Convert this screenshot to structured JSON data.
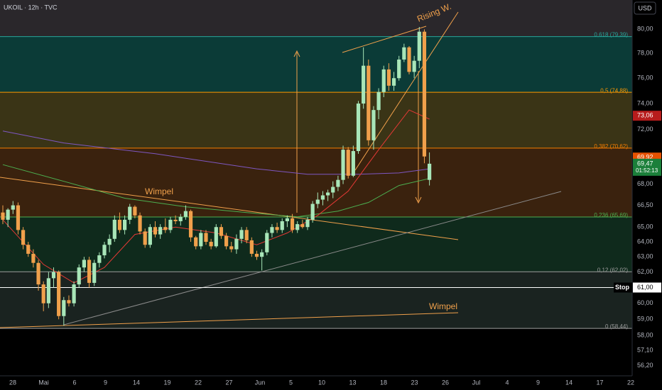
{
  "chart_data": {
    "type": "candlestick",
    "title": "UKOIL · 12h · TVC",
    "currency": "USD",
    "log_scale": true,
    "ylim": [
      55.6,
      82.5
    ],
    "yticks": [
      {
        "value": 80,
        "label": "80,00"
      },
      {
        "value": 78,
        "label": "78,00"
      },
      {
        "value": 76,
        "label": "76,00"
      },
      {
        "value": 74,
        "label": "74,00"
      },
      {
        "value": 72,
        "label": "72,00"
      },
      {
        "value": 68,
        "label": "68,00"
      },
      {
        "value": 66.5,
        "label": "66,50"
      },
      {
        "value": 65,
        "label": "65,00"
      },
      {
        "value": 64,
        "label": "64,00"
      },
      {
        "value": 63,
        "label": "63,00"
      },
      {
        "value": 62,
        "label": "62,00"
      },
      {
        "value": 60,
        "label": "60,00"
      },
      {
        "value": 59,
        "label": "59,00"
      },
      {
        "value": 58,
        "label": "58,00"
      },
      {
        "value": 57.1,
        "label": "57,10"
      },
      {
        "value": 56.2,
        "label": "56,20"
      }
    ],
    "x_tick_labels": [
      "28",
      "Mai",
      "6",
      "9",
      "14",
      "19",
      "22",
      "27",
      "Jun",
      "5",
      "10",
      "13",
      "18",
      "23",
      "26",
      "Jul",
      "4",
      "9",
      "14",
      "17",
      "22"
    ],
    "up_color": "#a8e6b8",
    "down_color": "#f0a04b",
    "open": [
      66.0,
      65.5,
      66.2,
      66.5,
      64.8,
      63.8,
      63.2,
      62.6,
      61.2,
      60.0,
      61.6,
      62.0,
      59.2,
      60.2,
      60.0,
      61.2,
      62.3,
      62.8,
      61.3,
      62.6,
      63.1,
      63.8,
      64.2,
      65.5,
      64.8,
      65.5,
      66.4,
      65.8,
      64.7,
      63.8,
      65.0,
      64.5,
      65.0,
      64.8,
      65.5,
      65.4,
      65.7,
      66.1,
      64.3,
      63.7,
      64.6,
      64.0,
      63.7,
      65.0,
      64.4,
      63.7,
      63.5,
      64.2,
      64.8,
      64.1,
      63.2,
      63.0,
      63.3,
      64.6,
      65.0,
      64.8,
      65.4,
      65.6,
      64.8,
      65.2,
      65.0,
      65.5,
      66.6,
      66.9,
      67.2,
      67.4,
      67.8,
      68.3,
      70.5,
      68.6,
      70.4,
      74.0,
      77.0,
      71.2,
      73.5,
      74.9,
      76.7,
      75.4,
      76.0,
      77.5,
      78.5,
      76.5,
      77.4,
      79.8,
      68.3
    ],
    "high": [
      66.5,
      66.3,
      66.8,
      66.7,
      65.0,
      64.0,
      63.5,
      62.8,
      61.4,
      62.0,
      62.3,
      62.1,
      60.4,
      60.5,
      61.4,
      62.5,
      63.0,
      63.0,
      62.8,
      63.3,
      64.0,
      64.5,
      65.8,
      66.0,
      65.8,
      66.6,
      66.5,
      66.0,
      64.9,
      65.2,
      65.4,
      65.2,
      65.6,
      65.7,
      65.8,
      65.9,
      66.5,
      66.2,
      64.4,
      64.8,
      64.8,
      64.2,
      65.2,
      65.2,
      64.6,
      64.0,
      64.5,
      65.0,
      65.0,
      64.3,
      63.4,
      63.5,
      64.8,
      65.2,
      65.3,
      65.6,
      65.8,
      65.9,
      65.4,
      65.5,
      65.7,
      66.8,
      67.4,
      67.5,
      67.6,
      68.2,
      68.6,
      70.8,
      70.7,
      70.8,
      74.2,
      78.5,
      77.5,
      73.8,
      75.2,
      77.0,
      77.2,
      76.5,
      77.8,
      78.8,
      78.6,
      77.8,
      80.2,
      80.0,
      70.3
    ],
    "low": [
      65.2,
      65.0,
      65.9,
      64.5,
      63.5,
      63.0,
      62.3,
      60.8,
      59.5,
      59.7,
      61.0,
      59.0,
      58.6,
      59.8,
      59.8,
      61.0,
      62.0,
      61.0,
      61.1,
      62.3,
      62.9,
      63.3,
      64.0,
      64.6,
      64.5,
      65.2,
      65.6,
      64.5,
      63.6,
      63.6,
      64.3,
      64.2,
      64.6,
      64.6,
      65.2,
      65.1,
      65.5,
      64.0,
      63.5,
      63.5,
      63.8,
      63.5,
      63.6,
      64.2,
      63.5,
      63.3,
      63.2,
      63.9,
      63.9,
      63.0,
      62.8,
      62.1,
      63.1,
      64.3,
      64.6,
      64.6,
      65.0,
      64.6,
      64.6,
      64.9,
      64.8,
      65.3,
      66.3,
      66.5,
      66.8,
      67.0,
      67.5,
      68.0,
      68.4,
      68.5,
      70.2,
      73.6,
      70.8,
      70.5,
      72.8,
      74.5,
      75.0,
      75.0,
      75.8,
      77.3,
      76.3,
      76.0,
      76.8,
      69.5,
      67.9
    ],
    "close": [
      65.5,
      66.2,
      66.5,
      64.8,
      63.8,
      63.2,
      62.6,
      61.2,
      60.0,
      61.6,
      62.0,
      59.2,
      60.2,
      60.0,
      61.2,
      62.3,
      62.8,
      61.3,
      62.6,
      63.1,
      63.8,
      64.2,
      65.5,
      64.8,
      65.5,
      66.4,
      65.8,
      64.7,
      63.8,
      65.0,
      64.5,
      65.0,
      64.8,
      65.5,
      65.4,
      65.7,
      66.1,
      64.3,
      63.7,
      64.6,
      64.0,
      63.7,
      65.0,
      64.4,
      63.7,
      63.5,
      64.2,
      64.8,
      64.1,
      63.2,
      63.0,
      63.3,
      64.6,
      65.0,
      64.8,
      65.4,
      65.6,
      64.8,
      65.2,
      65.0,
      65.5,
      66.6,
      66.9,
      67.2,
      67.4,
      67.8,
      68.3,
      70.5,
      68.6,
      70.4,
      74.0,
      77.0,
      71.2,
      73.5,
      74.9,
      76.7,
      75.4,
      76.0,
      77.5,
      78.5,
      76.5,
      77.4,
      79.8,
      70.0,
      69.47
    ],
    "indicators": [
      {
        "color": "#7e57c2",
        "x": [
          0,
          12,
          30,
          50,
          60,
          70,
          78,
          84
        ],
        "values": [
          71.9,
          71.0,
          70.2,
          69.1,
          68.7,
          68.7,
          68.8,
          69.1
        ]
      },
      {
        "color": "#4caf50",
        "x": [
          0,
          12,
          24,
          36,
          48,
          58,
          66,
          72,
          78,
          84
        ],
        "values": [
          69.4,
          68.2,
          67.0,
          66.4,
          66.0,
          65.7,
          66.1,
          66.7,
          67.9,
          68.4
        ]
      },
      {
        "color": "#e53935",
        "x": [
          0,
          8,
          14,
          20,
          26,
          34,
          42,
          50,
          56,
          62,
          68,
          74,
          80,
          84
        ],
        "values": [
          65.5,
          62.5,
          61.3,
          62.3,
          64.5,
          65.0,
          64.6,
          63.8,
          64.6,
          65.8,
          67.5,
          70.5,
          73.5,
          72.8
        ]
      }
    ],
    "fib_levels": [
      {
        "ratio": 0.618,
        "price": 79.39,
        "label": "0,618 (79,39)",
        "color": "#26a69a",
        "fill": "#0b3b37"
      },
      {
        "ratio": 0.5,
        "price": 74.88,
        "label": "0,5 (74,88)",
        "color": "#ff9800",
        "fill": "#3a3416"
      },
      {
        "ratio": 0.382,
        "price": 70.62,
        "label": "0,382 (70,62)",
        "color": "#f57c00",
        "fill": "#3a220e"
      },
      {
        "ratio": 0.236,
        "price": 65.69,
        "label": "0,236 (65,69)",
        "color": "#4caf50",
        "fill": "#0f2a1c"
      },
      {
        "ratio": 0.12,
        "price": 62.02,
        "label": "0,12 (62,02)",
        "color": "#9e9e9e",
        "fill": "#1a2320"
      },
      {
        "ratio": 0,
        "price": 58.44,
        "label": "0 (58,44)",
        "color": "#9e9e9e"
      }
    ],
    "stop": {
      "label": "Stop",
      "value": 61.0,
      "value_label": "61,00"
    },
    "price_markers": [
      {
        "value": 73.06,
        "label": "73,06",
        "color": "#b71c1c"
      },
      {
        "value": 69.92,
        "label": "69,92",
        "color": "#e65100"
      },
      {
        "value": 69.47,
        "label": "69,47",
        "color": "#1b7f3a"
      }
    ],
    "countdown": "01:52:13",
    "annotations": [
      "Rising W.",
      "Wimpel",
      "Wimpel"
    ]
  }
}
